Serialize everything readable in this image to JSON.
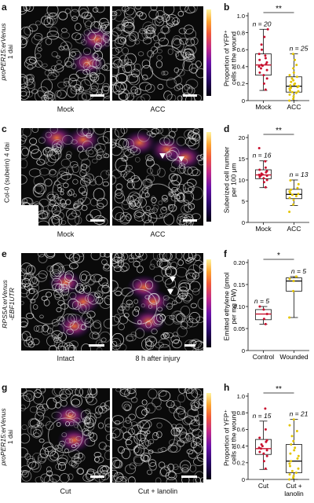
{
  "panels": {
    "a": {
      "letter": "a",
      "side_label_line1": "proPER15:erVenus",
      "side_label_line2": "1 dai",
      "cap_left": "Mock",
      "cap_right": "ACC"
    },
    "b": {
      "letter": "b"
    },
    "c": {
      "letter": "c",
      "side_label": "Col-0 (suberin) 4 dai",
      "cap_left": "Mock",
      "cap_right": "ACC"
    },
    "d": {
      "letter": "d"
    },
    "e": {
      "letter": "e",
      "side_label_line1": "RPS5A:erVenus",
      "side_label_line2": "-EBF1UTR",
      "cap_left": "Intact",
      "cap_right": "8 h after injury"
    },
    "f": {
      "letter": "f"
    },
    "g": {
      "letter": "g",
      "side_label_line1": "proPER15:erVenus",
      "side_label_line2": "1 dai",
      "cap_left": "Cut",
      "cap_right": "Cut + lanolin"
    },
    "h": {
      "letter": "h"
    }
  },
  "chart_data": [
    {
      "id": "b",
      "type": "box",
      "ylabel": "Proportion of YFP⁺ cells at the wound",
      "categories": [
        "Mock",
        "ACC"
      ],
      "ylim": [
        0,
        1
      ],
      "yticks": [
        0,
        0.2,
        0.4,
        0.6,
        0.8,
        1.0
      ],
      "ytick_labels": [
        "0",
        "0.2",
        "0.4",
        "0.6",
        "0.8",
        "1.0"
      ],
      "boxes": [
        {
          "min": 0.12,
          "q1": 0.3,
          "median": 0.42,
          "q3": 0.55,
          "max": 0.84
        },
        {
          "min": 0.0,
          "q1": 0.1,
          "median": 0.17,
          "q3": 0.28,
          "max": 0.55
        }
      ],
      "n_labels": [
        "n = 20",
        "n = 25"
      ],
      "significance": "**",
      "points": [
        [
          0.13,
          0.2,
          0.26,
          0.3,
          0.33,
          0.36,
          0.38,
          0.4,
          0.41,
          0.42,
          0.43,
          0.45,
          0.48,
          0.5,
          0.53,
          0.55,
          0.6,
          0.66,
          0.75,
          0.84
        ],
        [
          0.0,
          0.02,
          0.05,
          0.07,
          0.09,
          0.1,
          0.11,
          0.12,
          0.14,
          0.15,
          0.16,
          0.17,
          0.18,
          0.19,
          0.2,
          0.22,
          0.24,
          0.26,
          0.28,
          0.3,
          0.33,
          0.38,
          0.42,
          0.48,
          0.55
        ]
      ]
    },
    {
      "id": "d",
      "type": "box",
      "ylabel": "Suberized cell number per 100 μm",
      "categories": [
        "Mock",
        "ACC"
      ],
      "ylim": [
        0,
        20
      ],
      "yticks": [
        0,
        5,
        10,
        15,
        20
      ],
      "ytick_labels": [
        "0",
        "5",
        "10",
        "15",
        "20"
      ],
      "boxes": [
        {
          "min": 8.2,
          "q1": 10.3,
          "median": 11.2,
          "q3": 12.4,
          "max": 14.5
        },
        {
          "min": 4.0,
          "q1": 5.6,
          "median": 6.6,
          "q3": 7.8,
          "max": 10.0
        }
      ],
      "n_labels": [
        "n = 16",
        "n = 13"
      ],
      "significance": "**",
      "points": [
        [
          8.3,
          9.5,
          10.0,
          10.4,
          10.7,
          11.0,
          11.1,
          11.2,
          11.3,
          11.5,
          11.8,
          12.1,
          12.4,
          12.9,
          14.4,
          17.5
        ],
        [
          2.5,
          4.2,
          5.3,
          5.8,
          6.2,
          6.5,
          6.7,
          7.0,
          7.3,
          7.7,
          8.1,
          9.0,
          9.9
        ]
      ]
    },
    {
      "id": "f",
      "type": "box",
      "ylabel": "Emitted ethylene (pmol per mg FW)",
      "categories": [
        "Control",
        "Wounded"
      ],
      "ylim": [
        0,
        0.2
      ],
      "yticks": [
        0,
        0.05,
        0.1,
        0.15,
        0.2
      ],
      "ytick_labels": [
        "0",
        "0.05",
        "0.10",
        "0.15",
        "0.20"
      ],
      "boxes": [
        {
          "min": 0.06,
          "q1": 0.07,
          "median": 0.083,
          "q3": 0.093,
          "max": 0.1
        },
        {
          "min": 0.075,
          "q1": 0.135,
          "median": 0.158,
          "q3": 0.165,
          "max": 0.168
        }
      ],
      "n_labels": [
        "n = 5",
        "n = 5"
      ],
      "significance": "*",
      "points": [
        [
          0.06,
          0.072,
          0.083,
          0.093,
          0.1
        ],
        [
          0.075,
          0.135,
          0.158,
          0.163,
          0.168
        ]
      ]
    },
    {
      "id": "h",
      "type": "box",
      "ylabel": "Proportion of YFP⁺ cells at the wound",
      "categories": [
        "Cut",
        "Cut + lanolin"
      ],
      "ylim": [
        0,
        1
      ],
      "yticks": [
        0,
        0.2,
        0.4,
        0.6,
        0.8,
        1.0
      ],
      "ytick_labels": [
        "0",
        "0.2",
        "0.4",
        "0.6",
        "0.8",
        "1.0"
      ],
      "boxes": [
        {
          "min": 0.12,
          "q1": 0.3,
          "median": 0.37,
          "q3": 0.48,
          "max": 0.7
        },
        {
          "min": 0.0,
          "q1": 0.08,
          "median": 0.22,
          "q3": 0.42,
          "max": 0.72
        }
      ],
      "n_labels": [
        "n = 15",
        "n = 21"
      ],
      "significance": "**",
      "points": [
        [
          0.13,
          0.22,
          0.28,
          0.31,
          0.33,
          0.35,
          0.37,
          0.38,
          0.4,
          0.42,
          0.45,
          0.47,
          0.5,
          0.6,
          0.85
        ],
        [
          0.0,
          0.02,
          0.04,
          0.06,
          0.08,
          0.1,
          0.13,
          0.16,
          0.19,
          0.22,
          0.25,
          0.28,
          0.31,
          0.35,
          0.38,
          0.42,
          0.46,
          0.52,
          0.58,
          0.65,
          0.72
        ]
      ]
    }
  ],
  "colors": {
    "mock_dot": "#c8102e",
    "treat_dot": "#e3c400",
    "median_line": "#c8102e",
    "colorbar_low": "#05010f",
    "colorbar_high": "#fff5a0"
  }
}
